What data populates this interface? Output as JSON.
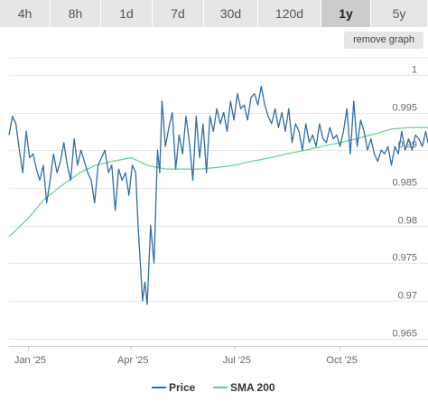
{
  "tabs": [
    {
      "label": "4h"
    },
    {
      "label": "8h"
    },
    {
      "label": "1d"
    },
    {
      "label": "7d"
    },
    {
      "label": "30d"
    },
    {
      "label": "120d"
    },
    {
      "label": "1y"
    },
    {
      "label": "5y"
    }
  ],
  "active_tab": "1y",
  "remove_graph_label": "remove graph",
  "chart_data": {
    "type": "line",
    "x_ticks": [
      "Jan '25",
      "Apr '25",
      "Jul '25",
      "Oct '25"
    ],
    "y_ticks": [
      0.965,
      0.97,
      0.975,
      0.98,
      0.985,
      0.99,
      0.995,
      1
    ],
    "y_tick_labels": [
      "0.965",
      "0.97",
      "0.975",
      "0.98",
      "0.985",
      "0.99",
      "0.995",
      "1"
    ],
    "ylim": [
      0.964,
      1.0025
    ],
    "x_range": [
      "2024-12-15",
      "2025-12-17"
    ],
    "grid": true,
    "legend_position": "bottom-center",
    "colors": {
      "price": "#2e6fa7",
      "sma": "#5fd08a"
    },
    "series": [
      {
        "name": "Price",
        "x": [
          "2024-12-15",
          "2024-12-18",
          "2024-12-21",
          "2024-12-24",
          "2024-12-27",
          "2024-12-30",
          "2025-01-02",
          "2025-01-05",
          "2025-01-08",
          "2025-01-11",
          "2025-01-14",
          "2025-01-17",
          "2025-01-20",
          "2025-01-23",
          "2025-01-26",
          "2025-01-29",
          "2025-02-01",
          "2025-02-04",
          "2025-02-07",
          "2025-02-10",
          "2025-02-13",
          "2025-02-16",
          "2025-02-19",
          "2025-02-22",
          "2025-02-25",
          "2025-02-28",
          "2025-03-03",
          "2025-03-06",
          "2025-03-09",
          "2025-03-12",
          "2025-03-15",
          "2025-03-18",
          "2025-03-21",
          "2025-03-24",
          "2025-03-27",
          "2025-03-30",
          "2025-04-02",
          "2025-04-05",
          "2025-04-07",
          "2025-04-09",
          "2025-04-11",
          "2025-04-13",
          "2025-04-15",
          "2025-04-18",
          "2025-04-21",
          "2025-04-24",
          "2025-04-26",
          "2025-04-28",
          "2025-05-01",
          "2025-05-04",
          "2025-05-07",
          "2025-05-10",
          "2025-05-13",
          "2025-05-16",
          "2025-05-19",
          "2025-05-22",
          "2025-05-25",
          "2025-05-28",
          "2025-05-31",
          "2025-06-03",
          "2025-06-06",
          "2025-06-09",
          "2025-06-12",
          "2025-06-15",
          "2025-06-18",
          "2025-06-21",
          "2025-06-24",
          "2025-06-27",
          "2025-06-30",
          "2025-07-03",
          "2025-07-06",
          "2025-07-09",
          "2025-07-12",
          "2025-07-15",
          "2025-07-18",
          "2025-07-21",
          "2025-07-24",
          "2025-07-27",
          "2025-07-30",
          "2025-08-02",
          "2025-08-05",
          "2025-08-08",
          "2025-08-11",
          "2025-08-14",
          "2025-08-17",
          "2025-08-20",
          "2025-08-23",
          "2025-08-26",
          "2025-08-29",
          "2025-09-01",
          "2025-09-04",
          "2025-09-07",
          "2025-09-10",
          "2025-09-13",
          "2025-09-16",
          "2025-09-19",
          "2025-09-22",
          "2025-09-25",
          "2025-09-28",
          "2025-10-01",
          "2025-10-04",
          "2025-10-07",
          "2025-10-10",
          "2025-10-13",
          "2025-10-16",
          "2025-10-19",
          "2025-10-22",
          "2025-10-25",
          "2025-10-28",
          "2025-10-31",
          "2025-11-03",
          "2025-11-06",
          "2025-11-09",
          "2025-11-12",
          "2025-11-15",
          "2025-11-18",
          "2025-11-21",
          "2025-11-24",
          "2025-11-27",
          "2025-11-30",
          "2025-12-03",
          "2025-12-06",
          "2025-12-09",
          "2025-12-12",
          "2025-12-15",
          "2025-12-17"
        ],
        "y": [
          0.992,
          0.9945,
          0.9935,
          0.99,
          0.987,
          0.9925,
          0.989,
          0.9895,
          0.9875,
          0.986,
          0.988,
          0.983,
          0.986,
          0.9895,
          0.987,
          0.9885,
          0.991,
          0.988,
          0.986,
          0.9915,
          0.988,
          0.99,
          0.9885,
          0.987,
          0.986,
          0.983,
          0.988,
          0.989,
          0.99,
          0.987,
          0.988,
          0.982,
          0.9875,
          0.986,
          0.987,
          0.984,
          0.988,
          0.987,
          0.98,
          0.975,
          0.97,
          0.9725,
          0.9695,
          0.98,
          0.975,
          0.99,
          0.987,
          0.9965,
          0.9905,
          0.993,
          0.995,
          0.9875,
          0.992,
          0.9895,
          0.9945,
          0.991,
          0.986,
          0.9945,
          0.989,
          0.9935,
          0.987,
          0.9945,
          0.9925,
          0.9955,
          0.9935,
          0.995,
          0.9925,
          0.9965,
          0.994,
          0.9975,
          0.9955,
          0.996,
          0.994,
          0.997,
          0.9975,
          0.996,
          0.9985,
          0.996,
          0.9945,
          0.9935,
          0.9955,
          0.993,
          0.995,
          0.9925,
          0.9955,
          0.991,
          0.9935,
          0.9925,
          0.99,
          0.9935,
          0.991,
          0.992,
          0.9905,
          0.9935,
          0.9915,
          0.991,
          0.993,
          0.9915,
          0.992,
          0.9905,
          0.9925,
          0.9955,
          0.9895,
          0.9965,
          0.9905,
          0.994,
          0.9925,
          0.99,
          0.9915,
          0.9895,
          0.9885,
          0.99,
          0.9895,
          0.9905,
          0.988,
          0.9905,
          0.9895,
          0.9925,
          0.99,
          0.9915,
          0.99,
          0.992,
          0.9915,
          0.9905,
          0.9925,
          0.991
        ]
      },
      {
        "name": "SMA 200",
        "x": [
          "2024-12-15",
          "2025-01-01",
          "2025-01-15",
          "2025-02-01",
          "2025-02-15",
          "2025-03-01",
          "2025-03-15",
          "2025-04-01",
          "2025-04-15",
          "2025-05-01",
          "2025-05-15",
          "2025-06-01",
          "2025-06-15",
          "2025-07-01",
          "2025-07-15",
          "2025-08-01",
          "2025-08-15",
          "2025-09-01",
          "2025-09-15",
          "2025-10-01",
          "2025-10-15",
          "2025-11-01",
          "2025-11-15",
          "2025-12-01",
          "2025-12-17"
        ],
        "y": [
          0.9785,
          0.981,
          0.9835,
          0.9855,
          0.987,
          0.988,
          0.9885,
          0.989,
          0.988,
          0.9875,
          0.9875,
          0.9875,
          0.9877,
          0.988,
          0.9885,
          0.989,
          0.9895,
          0.99,
          0.9905,
          0.991,
          0.9915,
          0.9922,
          0.9928,
          0.993,
          0.993
        ]
      }
    ]
  }
}
